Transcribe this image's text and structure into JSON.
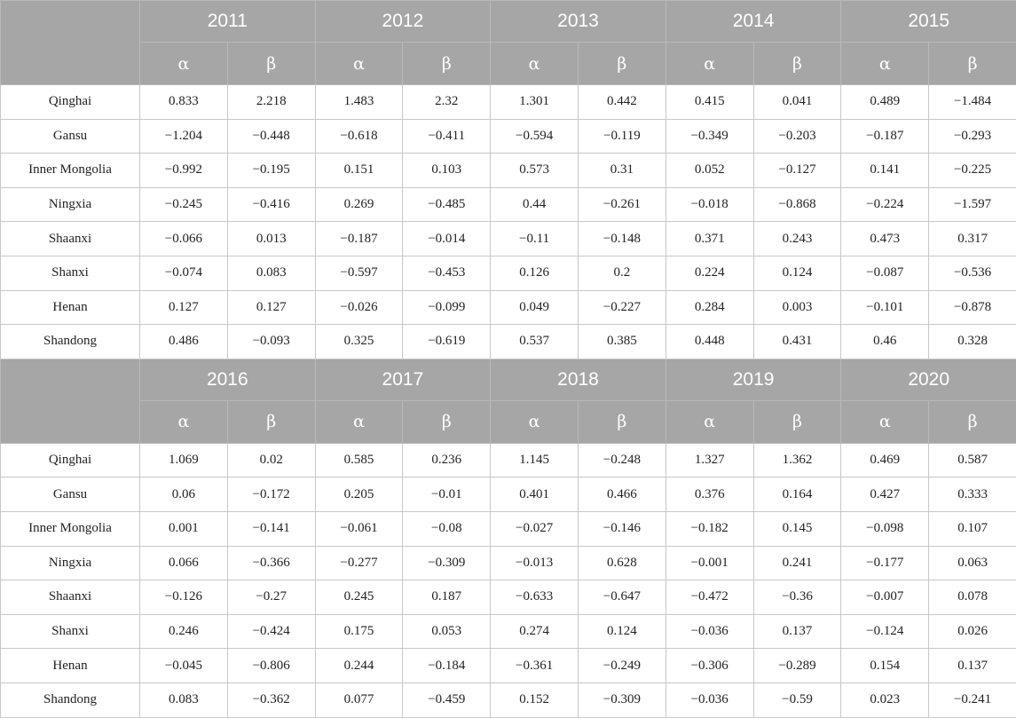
{
  "symbols": {
    "alpha": "α",
    "beta": "β"
  },
  "blocks": [
    {
      "years": [
        "2011",
        "2012",
        "2013",
        "2014",
        "2015"
      ],
      "rows": [
        {
          "province": "Qinghai",
          "values": [
            "0.833",
            "2.218",
            "1.483",
            "2.32",
            "1.301",
            "0.442",
            "0.415",
            "0.041",
            "0.489",
            "−1.484"
          ]
        },
        {
          "province": "Gansu",
          "values": [
            "−1.204",
            "−0.448",
            "−0.618",
            "−0.411",
            "−0.594",
            "−0.119",
            "−0.349",
            "−0.203",
            "−0.187",
            "−0.293"
          ]
        },
        {
          "province": "Inner Mongolia",
          "values": [
            "−0.992",
            "−0.195",
            "0.151",
            "0.103",
            "0.573",
            "0.31",
            "0.052",
            "−0.127",
            "0.141",
            "−0.225"
          ]
        },
        {
          "province": "Ningxia",
          "values": [
            "−0.245",
            "−0.416",
            "0.269",
            "−0.485",
            "0.44",
            "−0.261",
            "−0.018",
            "−0.868",
            "−0.224",
            "−1.597"
          ]
        },
        {
          "province": "Shaanxi",
          "values": [
            "−0.066",
            "0.013",
            "−0.187",
            "−0.014",
            "−0.11",
            "−0.148",
            "0.371",
            "0.243",
            "0.473",
            "0.317"
          ]
        },
        {
          "province": "Shanxi",
          "values": [
            "−0.074",
            "0.083",
            "−0.597",
            "−0.453",
            "0.126",
            "0.2",
            "0.224",
            "0.124",
            "−0.087",
            "−0.536"
          ]
        },
        {
          "province": "Henan",
          "values": [
            "0.127",
            "0.127",
            "−0.026",
            "−0.099",
            "0.049",
            "−0.227",
            "0.284",
            "0.003",
            "−0.101",
            "−0.878"
          ]
        },
        {
          "province": "Shandong",
          "values": [
            "0.486",
            "−0.093",
            "0.325",
            "−0.619",
            "0.537",
            "0.385",
            "0.448",
            "0.431",
            "0.46",
            "0.328"
          ]
        }
      ]
    },
    {
      "years": [
        "2016",
        "2017",
        "2018",
        "2019",
        "2020"
      ],
      "rows": [
        {
          "province": "Qinghai",
          "values": [
            "1.069",
            "0.02",
            "0.585",
            "0.236",
            "1.145",
            "−0.248",
            "1.327",
            "1.362",
            "0.469",
            "0.587"
          ]
        },
        {
          "province": "Gansu",
          "values": [
            "0.06",
            "−0.172",
            "0.205",
            "−0.01",
            "0.401",
            "0.466",
            "0.376",
            "0.164",
            "0.427",
            "0.333"
          ]
        },
        {
          "province": "Inner Mongolia",
          "values": [
            "0.001",
            "−0.141",
            "−0.061",
            "−0.08",
            "−0.027",
            "−0.146",
            "−0.182",
            "0.145",
            "−0.098",
            "0.107"
          ]
        },
        {
          "province": "Ningxia",
          "values": [
            "0.066",
            "−0.366",
            "−0.277",
            "−0.309",
            "−0.013",
            "0.628",
            "−0.001",
            "0.241",
            "−0.177",
            "0.063"
          ]
        },
        {
          "province": "Shaanxi",
          "values": [
            "−0.126",
            "−0.27",
            "0.245",
            "0.187",
            "−0.633",
            "−0.647",
            "−0.472",
            "−0.36",
            "−0.007",
            "0.078"
          ]
        },
        {
          "province": "Shanxi",
          "values": [
            "0.246",
            "−0.424",
            "0.175",
            "0.053",
            "0.274",
            "0.124",
            "−0.036",
            "0.137",
            "−0.124",
            "0.026"
          ]
        },
        {
          "province": "Henan",
          "values": [
            "−0.045",
            "−0.806",
            "0.244",
            "−0.184",
            "−0.361",
            "−0.249",
            "−0.306",
            "−0.289",
            "0.154",
            "0.137"
          ]
        },
        {
          "province": "Shandong",
          "values": [
            "0.083",
            "−0.362",
            "0.077",
            "−0.459",
            "0.152",
            "−0.309",
            "−0.036",
            "−0.59",
            "0.023",
            "−0.241"
          ]
        }
      ]
    }
  ]
}
